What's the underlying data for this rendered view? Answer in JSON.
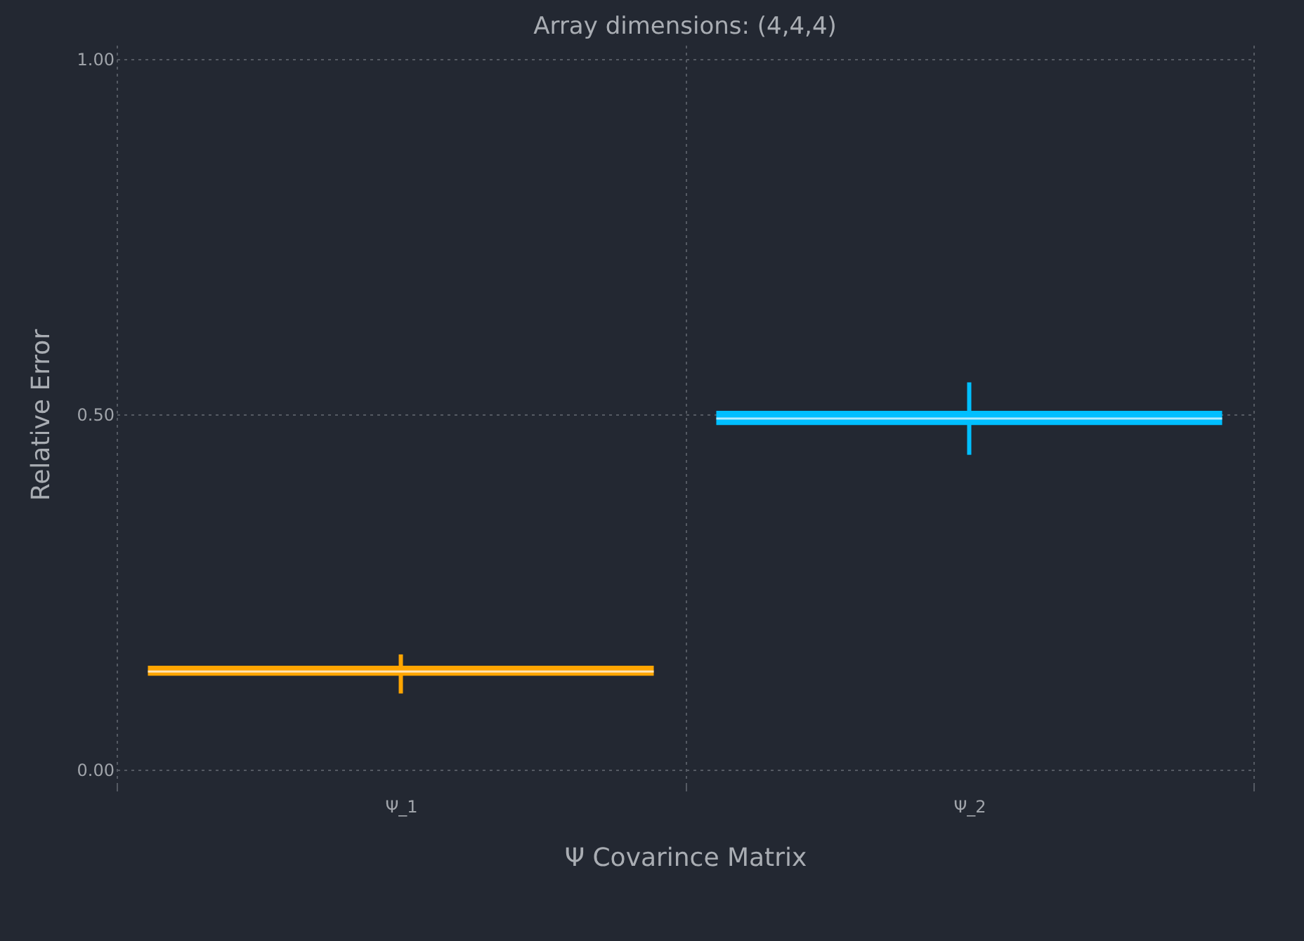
{
  "chart_data": {
    "type": "box",
    "title": "Array dimensions: (4,4,4)",
    "xlabel": "Ψ Covarince Matrix",
    "ylabel": "Relative Error",
    "categories": [
      "Ψ_1",
      "Ψ_2"
    ],
    "series": [
      {
        "color": "#ffa500",
        "boxes": [
          {
            "low": 0.107,
            "q1": 0.132,
            "median": 0.138,
            "q3": 0.146,
            "high": 0.162
          },
          null
        ]
      },
      {
        "color": "#00bfff",
        "boxes": [
          null,
          {
            "low": 0.443,
            "q1": 0.485,
            "median": 0.494,
            "q3": 0.505,
            "high": 0.545
          }
        ]
      }
    ],
    "ylim": [
      -0.02,
      1.02
    ],
    "yticks": [
      {
        "value": 0,
        "label": "0.00"
      },
      {
        "value": 0.5,
        "label": "0.50"
      },
      {
        "value": 1,
        "label": "1.00"
      }
    ],
    "grid": true
  }
}
